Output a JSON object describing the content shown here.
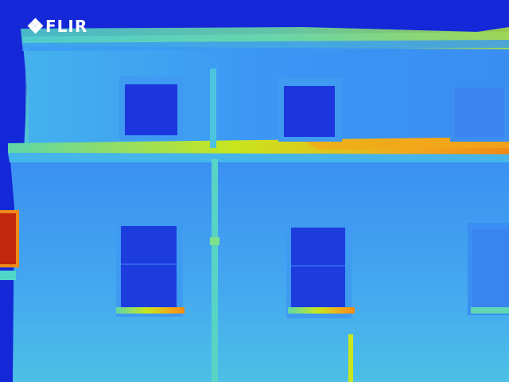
{
  "logo": {
    "text": "FLIR"
  },
  "palette": {
    "cold": "#1428d8",
    "cool": "#2f6cf0",
    "wall": "#3b92f4",
    "wall_light": "#48b4ef",
    "mild": "#4fd6c8",
    "warm": "#c8e61e",
    "hot": "#f2a81a",
    "hottest": "#c0280e"
  }
}
